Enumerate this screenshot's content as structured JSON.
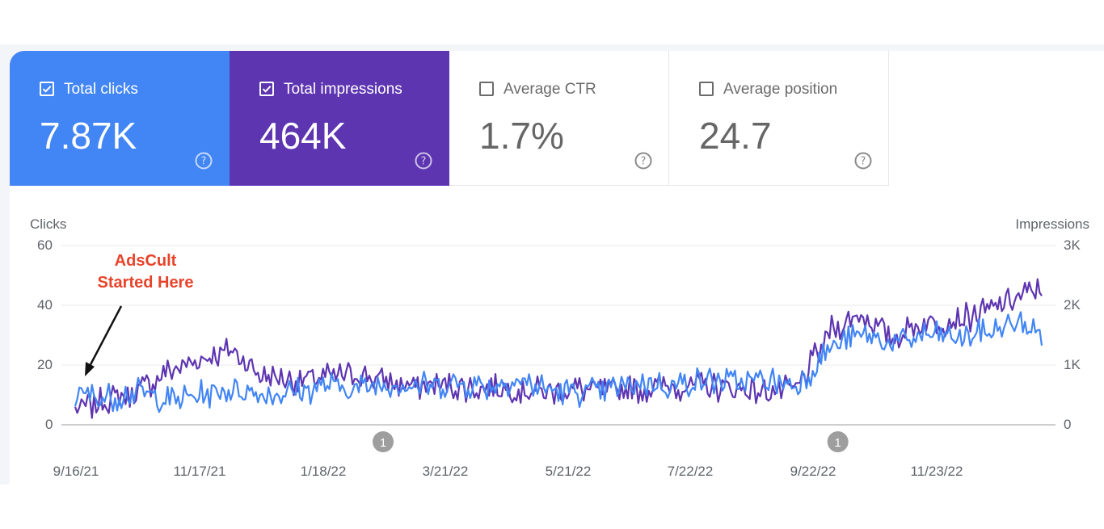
{
  "metrics": [
    {
      "label": "Total clicks",
      "value": "7.87K",
      "checked": true,
      "color": "#4285f4"
    },
    {
      "label": "Total impressions",
      "value": "464K",
      "checked": true,
      "color": "#5e35b1"
    },
    {
      "label": "Average CTR",
      "value": "1.7%",
      "checked": false,
      "color": "#ffffff"
    },
    {
      "label": "Average position",
      "value": "24.7",
      "checked": false,
      "color": "#ffffff"
    }
  ],
  "annotation": {
    "line1": "AdsCult",
    "line2": "Started Here",
    "color": "#e8432a"
  },
  "chart_data": {
    "type": "line",
    "title": "",
    "left_axis": {
      "title": "Clicks",
      "ticks": [
        "60",
        "40",
        "20",
        "0"
      ],
      "range": [
        0,
        60
      ]
    },
    "right_axis": {
      "title": "Impressions",
      "ticks": [
        "3K",
        "2K",
        "1K",
        "0"
      ],
      "range": [
        0,
        3000
      ]
    },
    "x_labels": [
      "9/16/21",
      "11/17/21",
      "1/18/22",
      "3/21/22",
      "5/21/22",
      "7/22/22",
      "9/22/22",
      "11/23/22"
    ],
    "event_markers": [
      {
        "label": "1",
        "date": "2/14/22"
      },
      {
        "label": "1",
        "date": "9/25/22"
      }
    ],
    "series": [
      {
        "name": "Total clicks",
        "axis": "left",
        "color": "#4285f4",
        "x": [
          "9/16/21",
          "10/1/21",
          "10/16/21",
          "11/1/21",
          "11/17/21",
          "12/2/21",
          "12/17/21",
          "1/1/22",
          "1/18/22",
          "2/2/22",
          "2/17/22",
          "3/4/22",
          "3/21/22",
          "4/5/22",
          "4/20/22",
          "5/5/22",
          "5/21/22",
          "6/5/22",
          "6/20/22",
          "7/5/22",
          "7/22/22",
          "8/6/22",
          "8/21/22",
          "9/5/22",
          "9/22/22",
          "10/7/22",
          "10/22/22",
          "11/6/22",
          "11/23/22",
          "12/8/22",
          "12/23/22",
          "1/3/23"
        ],
        "values": [
          10,
          9,
          11,
          8,
          10,
          12,
          10,
          11,
          13,
          12,
          14,
          13,
          14,
          13,
          15,
          12,
          11,
          12,
          14,
          13,
          15,
          14,
          15,
          13,
          26,
          30,
          27,
          30,
          29,
          31,
          34,
          30
        ]
      },
      {
        "name": "Total impressions",
        "axis": "right",
        "color": "#5e35b1",
        "x": [
          "9/16/21",
          "10/1/21",
          "10/16/21",
          "11/1/21",
          "11/17/21",
          "12/2/21",
          "12/17/21",
          "1/1/22",
          "1/18/22",
          "2/2/22",
          "2/17/22",
          "3/4/22",
          "3/21/22",
          "4/5/22",
          "4/20/22",
          "5/5/22",
          "5/21/22",
          "6/5/22",
          "6/20/22",
          "7/5/22",
          "7/22/22",
          "8/6/22",
          "8/21/22",
          "9/5/22",
          "9/22/22",
          "10/7/22",
          "10/22/22",
          "11/6/22",
          "11/23/22",
          "12/8/22",
          "12/23/22",
          "1/3/23"
        ],
        "values": [
          250,
          400,
          550,
          900,
          1100,
          1250,
          800,
          750,
          800,
          850,
          700,
          650,
          650,
          600,
          600,
          550,
          600,
          550,
          600,
          650,
          650,
          600,
          550,
          600,
          1600,
          1850,
          1450,
          1700,
          1750,
          1900,
          2150,
          2250
        ]
      }
    ]
  }
}
